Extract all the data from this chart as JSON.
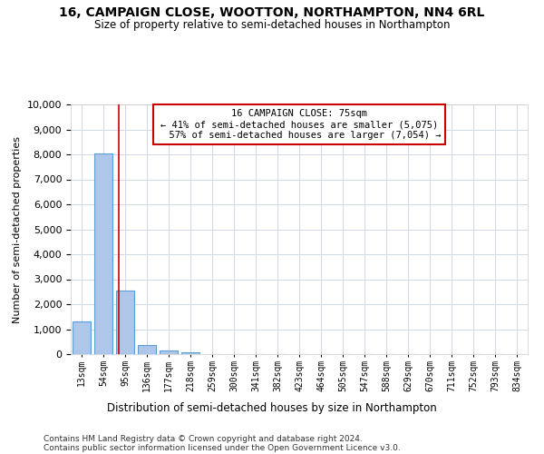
{
  "title1": "16, CAMPAIGN CLOSE, WOOTTON, NORTHAMPTON, NN4 6RL",
  "title2": "Size of property relative to semi-detached houses in Northampton",
  "xlabel": "Distribution of semi-detached houses by size in Northampton",
  "ylabel": "Number of semi-detached properties",
  "footer1": "Contains HM Land Registry data © Crown copyright and database right 2024.",
  "footer2": "Contains public sector information licensed under the Open Government Licence v3.0.",
  "bin_labels": [
    "13sqm",
    "54sqm",
    "95sqm",
    "136sqm",
    "177sqm",
    "218sqm",
    "259sqm",
    "300sqm",
    "341sqm",
    "382sqm",
    "423sqm",
    "464sqm",
    "505sqm",
    "547sqm",
    "588sqm",
    "629sqm",
    "670sqm",
    "711sqm",
    "752sqm",
    "793sqm",
    "834sqm"
  ],
  "bar_values": [
    1300,
    8050,
    2550,
    370,
    130,
    90,
    0,
    0,
    0,
    0,
    0,
    0,
    0,
    0,
    0,
    0,
    0,
    0,
    0,
    0,
    0
  ],
  "property_sqm": 75,
  "property_label": "16 CAMPAIGN CLOSE: 75sqm",
  "pct_smaller": 41,
  "count_smaller": 5075,
  "pct_larger": 57,
  "count_larger": 7054,
  "bar_color": "#aec6e8",
  "bar_edge_color": "#5a9fd4",
  "vline_color": "#cc0000",
  "vline_position": 1.7,
  "annotation_box_color": "#ffffff",
  "annotation_box_edge": "#cc0000",
  "background_color": "#ffffff",
  "grid_color": "#d0d8e8",
  "ylim": [
    0,
    10000
  ],
  "yticks": [
    0,
    1000,
    2000,
    3000,
    4000,
    5000,
    6000,
    7000,
    8000,
    9000,
    10000
  ]
}
